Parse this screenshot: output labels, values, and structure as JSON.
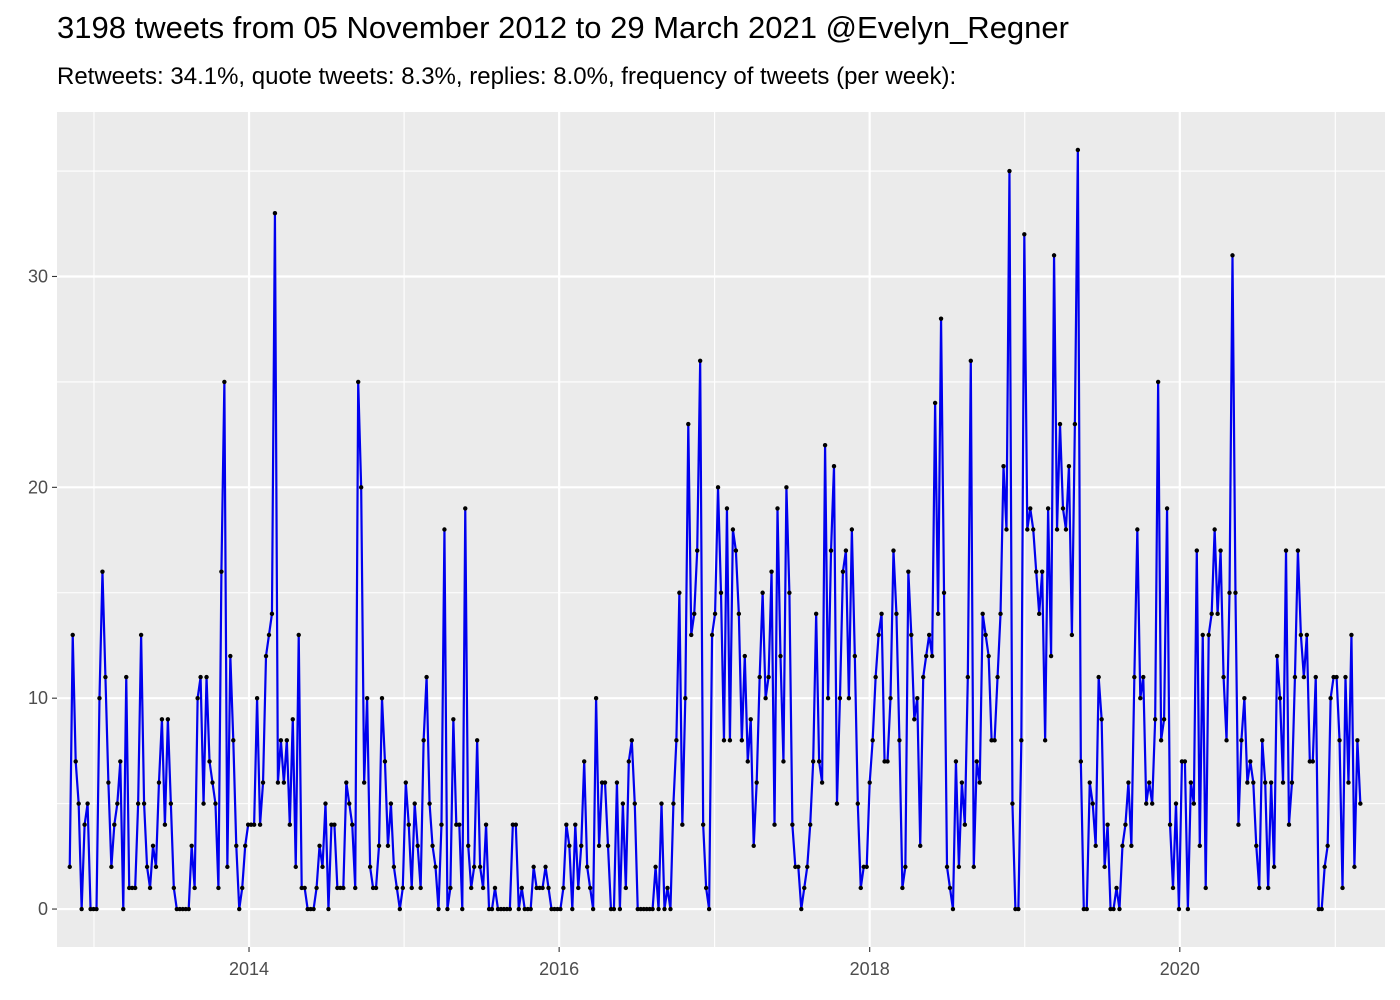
{
  "chart_data": {
    "type": "line",
    "title": "3198 tweets from 05 November 2012 to 29 March 2021 @Evelyn_Regner",
    "subtitle": "Retweets: 34.1%, quote tweets: 8.3%, replies: 8.0%, frequency of tweets (per week):",
    "xlabel": "",
    "ylabel": "",
    "x_axis": {
      "type": "date",
      "range": [
        "2012-10-06",
        "2021-04-28"
      ],
      "ticks": [
        "2014",
        "2016",
        "2018",
        "2020"
      ]
    },
    "y_axis": {
      "range": [
        -1.8,
        37.8
      ],
      "ticks": [
        0,
        10,
        20,
        30
      ]
    },
    "grid": true,
    "legend": "none",
    "colors": {
      "line": "#0000ee",
      "point": "#000000",
      "panel": "#ebebeb",
      "grid": "#ffffff"
    },
    "series": [
      {
        "start_date": "2012-11-05",
        "interval_days": 7,
        "values": [
          2,
          13,
          7,
          5,
          0,
          4,
          5,
          0,
          0,
          0,
          10,
          16,
          11,
          6,
          2,
          4,
          5,
          7,
          0,
          11,
          1,
          1,
          1,
          5,
          13,
          5,
          2,
          1,
          3,
          2,
          6,
          9,
          4,
          9,
          5,
          1,
          0,
          0,
          0,
          0,
          0,
          3,
          1,
          10,
          11,
          5,
          11,
          7,
          6,
          5,
          1,
          16,
          25,
          2,
          12,
          8,
          3,
          0,
          1,
          3,
          4,
          4,
          4,
          10,
          4,
          6,
          12,
          13,
          14,
          33,
          6,
          8,
          6,
          8,
          4,
          9,
          2,
          13,
          1,
          1,
          0,
          0,
          0,
          1,
          3,
          2,
          5,
          0,
          4,
          4,
          1,
          1,
          1,
          6,
          5,
          4,
          1,
          25,
          20,
          6,
          10,
          2,
          1,
          1,
          3,
          10,
          7,
          3,
          5,
          2,
          1,
          0,
          1,
          6,
          4,
          1,
          5,
          3,
          1,
          8,
          11,
          5,
          3,
          2,
          0,
          4,
          18,
          0,
          1,
          9,
          4,
          4,
          0,
          19,
          3,
          1,
          2,
          8,
          2,
          1,
          4,
          0,
          0,
          1,
          0,
          0,
          0,
          0,
          0,
          4,
          4,
          0,
          1,
          0,
          0,
          0,
          2,
          1,
          1,
          1,
          2,
          1,
          0,
          0,
          0,
          0,
          1,
          4,
          3,
          0,
          4,
          1,
          3,
          7,
          2,
          1,
          0,
          10,
          3,
          6,
          6,
          3,
          0,
          0,
          6,
          0,
          5,
          1,
          7,
          8,
          5,
          0,
          0,
          0,
          0,
          0,
          0,
          2,
          0,
          5,
          0,
          1,
          0,
          5,
          8,
          15,
          4,
          10,
          23,
          13,
          14,
          17,
          26,
          4,
          1,
          0,
          13,
          14,
          20,
          15,
          8,
          19,
          8,
          18,
          17,
          14,
          8,
          12,
          7,
          9,
          3,
          6,
          11,
          15,
          10,
          11,
          16,
          4,
          19,
          12,
          7,
          20,
          15,
          4,
          2,
          2,
          0,
          1,
          2,
          4,
          7,
          14,
          7,
          6,
          22,
          10,
          17,
          21,
          5,
          10,
          16,
          17,
          10,
          18,
          12,
          5,
          1,
          2,
          2,
          6,
          8,
          11,
          13,
          14,
          7,
          7,
          10,
          17,
          14,
          8,
          1,
          2,
          16,
          13,
          9,
          10,
          3,
          11,
          12,
          13,
          12,
          24,
          14,
          28,
          15,
          2,
          1,
          0,
          7,
          2,
          6,
          4,
          11,
          26,
          2,
          7,
          6,
          14,
          13,
          12,
          8,
          8,
          11,
          14,
          21,
          18,
          35,
          5,
          0,
          0,
          8,
          32,
          18,
          19,
          18,
          16,
          14,
          16,
          8,
          19,
          12,
          31,
          18,
          23,
          19,
          18,
          21,
          13,
          23,
          36,
          7,
          0,
          0,
          6,
          5,
          3,
          11,
          9,
          2,
          4,
          0,
          0,
          1,
          0,
          3,
          4,
          6,
          3,
          11,
          18,
          10,
          11,
          5,
          6,
          5,
          9,
          25,
          8,
          9,
          19,
          4,
          1,
          5,
          0,
          7,
          7,
          0,
          6,
          5,
          17,
          3,
          13,
          1,
          13,
          14,
          18,
          14,
          17,
          11,
          8,
          15,
          31,
          15,
          4,
          8,
          10,
          6,
          7,
          6,
          3,
          1,
          8,
          6,
          1,
          6,
          2,
          12,
          10,
          6,
          17,
          4,
          6,
          11,
          17,
          13,
          11,
          13,
          7,
          7,
          11,
          0,
          0,
          2,
          3,
          10,
          11,
          11,
          8,
          1,
          11,
          6,
          13,
          2,
          8,
          5
        ]
      }
    ]
  }
}
